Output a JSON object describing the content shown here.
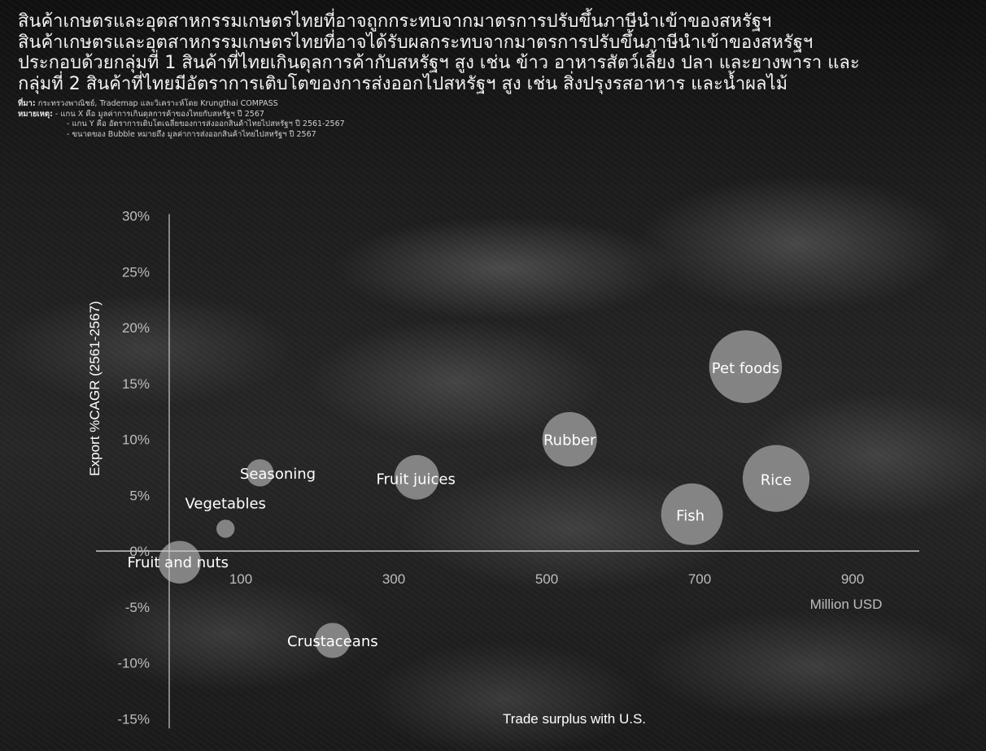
{
  "header": {
    "title_lines": [
      "สินค้าเกษตรและอุตสาหกรรมเกษตรไทยที่อาจถูกกระทบจากมาตรการปรับขึ้นภาษีนำเข้าของสหรัฐฯ",
      "สินค้าเกษตรและอุตสาหกรรมเกษตรไทยที่อาจได้รับผลกระทบจากมาตรการปรับขึ้นภาษีนำเข้าของสหรัฐฯ",
      "ประกอบด้วยกลุ่มที่ 1 สินค้าที่ไทยเกินดุลการค้ากับสหรัฐฯ สูง เช่น ข้าว อาหารสัตว์เลี้ยง ปลา และยางพารา และ",
      "กลุ่มที่ 2 สินค้าที่ไทยมีอัตราการเติบโตของการส่งออกไปสหรัฐฯ สูง เช่น สิ่งปรุงรสอาหาร และน้ำผลไม้"
    ],
    "source_label": "ที่มา:",
    "source_text": " กระทรวงพาณิชย์, Trademap และวิเคราะห์โดย Krungthai COMPASS",
    "note_label": "หมายเหตุ:",
    "note_lines": [
      " - แกน X คือ มูลค่าการเกินดุลการค้าของไทยกับสหรัฐฯ ปี 2567",
      "- แกน Y คือ อัตราการเติบโตเฉลี่ยของการส่งออกสินค้าไทยไปสหรัฐฯ ปี 2561-2567",
      "- ขนาดของ Bubble หมายถึง มูลค่าการส่งออกสินค้าไทยไปสหรัฐฯ ปี 2567"
    ]
  },
  "colors": {
    "bubble": "#8c8c8c",
    "axis": "#c8c8c8",
    "tick_text": "#bdbdbd",
    "label_text": "#ffffff"
  },
  "chart_data": {
    "type": "scatter",
    "subtype": "bubble",
    "xlabel": "Trade surplus with U.S.",
    "x_unit": "Million USD",
    "ylabel": "Export %CAGR (2561-2567)",
    "xlim": [
      -50,
      1000
    ],
    "ylim": [
      -15,
      30
    ],
    "x_ticks": [
      100,
      300,
      500,
      700,
      900
    ],
    "y_ticks": [
      30,
      25,
      20,
      15,
      10,
      5,
      0,
      -5,
      -10,
      -15
    ],
    "y_tick_labels": [
      "30%",
      "25%",
      "20%",
      "15%",
      "10%",
      "5%",
      "0%",
      "-5%",
      "-10%",
      "-15%"
    ],
    "grid": false,
    "series": [
      {
        "points": [
          {
            "label": "Pet foods",
            "x": 760,
            "y": 16.5,
            "size": 3.2
          },
          {
            "label": "Rice",
            "x": 800,
            "y": 6.5,
            "size": 2.7
          },
          {
            "label": "Fish",
            "x": 690,
            "y": 3.3,
            "size": 2.3
          },
          {
            "label": "Rubber",
            "x": 530,
            "y": 10.0,
            "size": 1.8
          },
          {
            "label": "Fruit juices",
            "x": 330,
            "y": 6.6,
            "size": 1.2
          },
          {
            "label": "Seasoning",
            "x": 125,
            "y": 7.0,
            "size": 0.45
          },
          {
            "label": "Vegetables",
            "x": 80,
            "y": 2.0,
            "size": 0.2
          },
          {
            "label": "Fruit and nuts",
            "x": 20,
            "y": -1.0,
            "size": 1.1
          },
          {
            "label": "Crustaceans",
            "x": 220,
            "y": -8.0,
            "size": 0.75
          }
        ]
      }
    ]
  }
}
